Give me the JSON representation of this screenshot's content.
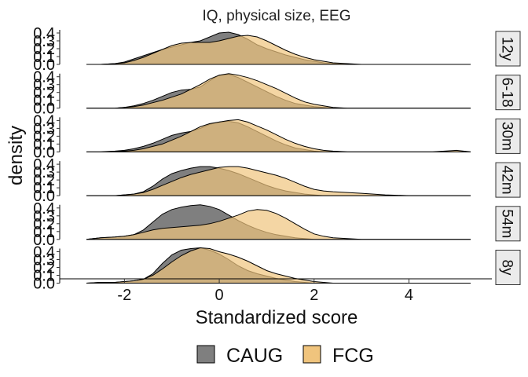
{
  "chart_data": {
    "type": "area",
    "title": "IQ, physical size, EEG",
    "xlabel": "Standardized score",
    "ylabel": "density",
    "xlim": [
      -2.9,
      5.4
    ],
    "x_ticks": [
      -2,
      0,
      2,
      4
    ],
    "ylim": [
      0,
      0.45
    ],
    "y_ticks": [
      "0.0",
      "0.1",
      "0.2",
      "0.3",
      "0.4"
    ],
    "x": [
      -2.8,
      -2.5,
      -2.2,
      -2.0,
      -1.8,
      -1.6,
      -1.4,
      -1.2,
      -1.0,
      -0.8,
      -0.6,
      -0.4,
      -0.2,
      0.0,
      0.2,
      0.4,
      0.6,
      0.8,
      1.0,
      1.2,
      1.4,
      1.6,
      1.8,
      2.0,
      2.2,
      2.4,
      2.7,
      3.0,
      3.5,
      4.0,
      4.5,
      5.0,
      5.3
    ],
    "legend": {
      "position": "bottom",
      "title": ""
    },
    "series_styles": [
      {
        "name": "CAUG",
        "color": "#7f7f7f"
      },
      {
        "name": "FCG",
        "color": "#f0c47d"
      }
    ],
    "panels": [
      {
        "label": "12y",
        "series": [
          {
            "name": "CAUG",
            "values": [
              0.0,
              0.0,
              0.01,
              0.03,
              0.07,
              0.11,
              0.15,
              0.19,
              0.22,
              0.25,
              0.28,
              0.3,
              0.35,
              0.4,
              0.41,
              0.38,
              0.32,
              0.25,
              0.2,
              0.16,
              0.12,
              0.09,
              0.06,
              0.04,
              0.02,
              0.01,
              0.0,
              0.0,
              0.0,
              0.0,
              0.0,
              0.0,
              0.0
            ]
          },
          {
            "name": "FCG",
            "values": [
              0.0,
              0.0,
              0.01,
              0.02,
              0.05,
              0.09,
              0.14,
              0.19,
              0.24,
              0.27,
              0.28,
              0.28,
              0.28,
              0.3,
              0.33,
              0.36,
              0.37,
              0.35,
              0.3,
              0.24,
              0.18,
              0.13,
              0.09,
              0.06,
              0.04,
              0.02,
              0.01,
              0.0,
              0.0,
              0.0,
              0.0,
              0.0,
              0.0
            ]
          }
        ]
      },
      {
        "label": "6-18",
        "series": [
          {
            "name": "CAUG",
            "values": [
              0.0,
              0.0,
              0.0,
              0.01,
              0.03,
              0.06,
              0.1,
              0.15,
              0.2,
              0.23,
              0.24,
              0.27,
              0.35,
              0.42,
              0.43,
              0.39,
              0.33,
              0.27,
              0.21,
              0.15,
              0.1,
              0.06,
              0.04,
              0.02,
              0.01,
              0.0,
              0.0,
              0.0,
              0.0,
              0.0,
              0.0,
              0.0,
              0.0
            ]
          },
          {
            "name": "FCG",
            "values": [
              0.0,
              0.0,
              0.0,
              0.01,
              0.02,
              0.04,
              0.07,
              0.1,
              0.14,
              0.18,
              0.24,
              0.3,
              0.37,
              0.42,
              0.44,
              0.42,
              0.39,
              0.35,
              0.3,
              0.25,
              0.19,
              0.13,
              0.08,
              0.05,
              0.03,
              0.01,
              0.0,
              0.0,
              0.0,
              0.0,
              0.0,
              0.0,
              0.0
            ]
          }
        ]
      },
      {
        "label": "30m",
        "series": [
          {
            "name": "CAUG",
            "values": [
              0.0,
              0.0,
              0.01,
              0.02,
              0.04,
              0.07,
              0.11,
              0.16,
              0.21,
              0.24,
              0.26,
              0.3,
              0.35,
              0.38,
              0.39,
              0.37,
              0.32,
              0.26,
              0.2,
              0.14,
              0.09,
              0.05,
              0.03,
              0.01,
              0.0,
              0.0,
              0.0,
              0.0,
              0.0,
              0.0,
              0.0,
              0.0,
              0.0
            ]
          },
          {
            "name": "FCG",
            "values": [
              0.0,
              0.0,
              0.0,
              0.01,
              0.02,
              0.04,
              0.07,
              0.1,
              0.15,
              0.2,
              0.26,
              0.32,
              0.36,
              0.38,
              0.4,
              0.41,
              0.38,
              0.33,
              0.28,
              0.22,
              0.16,
              0.11,
              0.07,
              0.04,
              0.02,
              0.01,
              0.0,
              0.0,
              0.0,
              0.0,
              0.0,
              0.02,
              0.0
            ]
          }
        ]
      },
      {
        "label": "42m",
        "series": [
          {
            "name": "CAUG",
            "values": [
              0.0,
              0.0,
              0.0,
              0.01,
              0.02,
              0.05,
              0.12,
              0.21,
              0.28,
              0.32,
              0.35,
              0.37,
              0.37,
              0.35,
              0.32,
              0.28,
              0.23,
              0.18,
              0.13,
              0.09,
              0.06,
              0.04,
              0.02,
              0.01,
              0.0,
              0.0,
              0.0,
              0.0,
              0.0,
              0.0,
              0.0,
              0.0,
              0.0
            ]
          },
          {
            "name": "FCG",
            "values": [
              0.0,
              0.0,
              0.0,
              0.01,
              0.02,
              0.04,
              0.08,
              0.13,
              0.18,
              0.23,
              0.27,
              0.3,
              0.33,
              0.36,
              0.37,
              0.37,
              0.35,
              0.32,
              0.29,
              0.26,
              0.22,
              0.17,
              0.12,
              0.08,
              0.06,
              0.05,
              0.04,
              0.03,
              0.01,
              0.0,
              0.0,
              0.0,
              0.0
            ]
          }
        ]
      },
      {
        "label": "54m",
        "series": [
          {
            "name": "CAUG",
            "values": [
              0.0,
              0.02,
              0.03,
              0.04,
              0.06,
              0.12,
              0.22,
              0.32,
              0.38,
              0.41,
              0.43,
              0.44,
              0.42,
              0.38,
              0.31,
              0.24,
              0.18,
              0.13,
              0.09,
              0.06,
              0.04,
              0.02,
              0.01,
              0.0,
              0.0,
              0.0,
              0.0,
              0.0,
              0.0,
              0.0,
              0.0,
              0.0,
              0.0
            ]
          },
          {
            "name": "FCG",
            "values": [
              0.0,
              0.02,
              0.03,
              0.04,
              0.06,
              0.09,
              0.12,
              0.14,
              0.15,
              0.16,
              0.17,
              0.18,
              0.2,
              0.23,
              0.27,
              0.31,
              0.36,
              0.38,
              0.37,
              0.33,
              0.27,
              0.2,
              0.13,
              0.07,
              0.04,
              0.02,
              0.01,
              0.0,
              0.0,
              0.0,
              0.0,
              0.0,
              0.0
            ]
          }
        ]
      },
      {
        "label": "8y",
        "series": [
          {
            "name": "CAUG",
            "values": [
              0.0,
              0.01,
              0.01,
              0.02,
              0.03,
              0.05,
              0.12,
              0.25,
              0.36,
              0.42,
              0.44,
              0.45,
              0.42,
              0.37,
              0.3,
              0.22,
              0.16,
              0.12,
              0.09,
              0.06,
              0.04,
              0.02,
              0.01,
              0.0,
              0.0,
              0.0,
              0.0,
              0.0,
              0.0,
              0.0,
              0.0,
              0.0,
              0.0
            ]
          },
          {
            "name": "FCG",
            "values": [
              0.0,
              0.01,
              0.01,
              0.02,
              0.03,
              0.05,
              0.1,
              0.18,
              0.27,
              0.35,
              0.41,
              0.45,
              0.44,
              0.4,
              0.37,
              0.33,
              0.28,
              0.22,
              0.16,
              0.12,
              0.09,
              0.06,
              0.04,
              0.02,
              0.01,
              0.0,
              0.0,
              0.0,
              0.0,
              0.0,
              0.0,
              0.0,
              0.0
            ]
          }
        ]
      }
    ]
  }
}
